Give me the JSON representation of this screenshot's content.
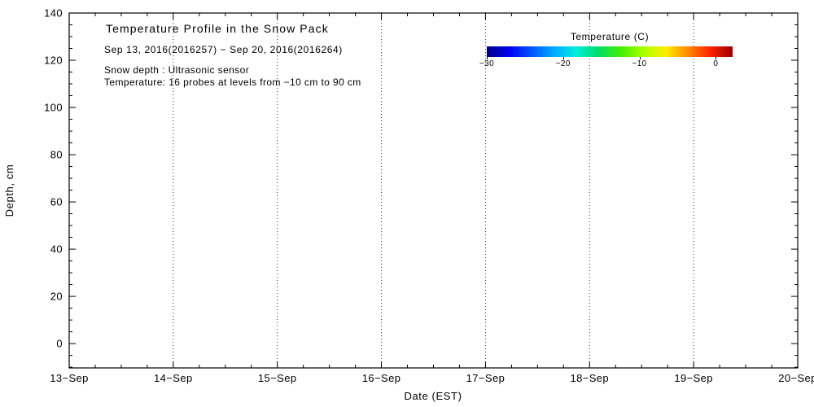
{
  "chart_data": {
    "type": "heatmap",
    "title": "Temperature Profile in the Snow Pack",
    "subtitle": "Sep 13, 2016(2016257) − Sep 20, 2016(2016264)",
    "annotations": [
      "Snow depth : Ultrasonic sensor",
      "Temperature: 16 probes at levels from −10 cm to 90 cm"
    ],
    "xlabel": "Date (EST)",
    "ylabel": "Depth, cm",
    "x_ticks": [
      "13−Sep",
      "14−Sep",
      "15−Sep",
      "16−Sep",
      "17−Sep",
      "18−Sep",
      "19−Sep",
      "20−Sep"
    ],
    "y_ticks": [
      0,
      20,
      40,
      60,
      80,
      100,
      120,
      140
    ],
    "xlim": [
      0,
      7
    ],
    "ylim": [
      -10.3,
      140
    ],
    "grid": "vertical-dotted",
    "legend_position": "top-right",
    "series": [],
    "note": "no snow-pack data plotted for this period (empty axes)",
    "colorbar": {
      "title": "Temperature (C)",
      "range": [
        -30,
        2.2
      ],
      "ticks": [
        {
          "label": "−30",
          "value": -30
        },
        {
          "label": "−20",
          "value": -20
        },
        {
          "label": "−10",
          "value": -10
        },
        {
          "label": "0",
          "value": 0
        }
      ],
      "colors": [
        "#00008b",
        "#0000ee",
        "#0055ff",
        "#00aaff",
        "#00eedd",
        "#00dd66",
        "#44ee00",
        "#aaff00",
        "#ffee00",
        "#ff8800",
        "#ff2200",
        "#990000"
      ]
    }
  }
}
